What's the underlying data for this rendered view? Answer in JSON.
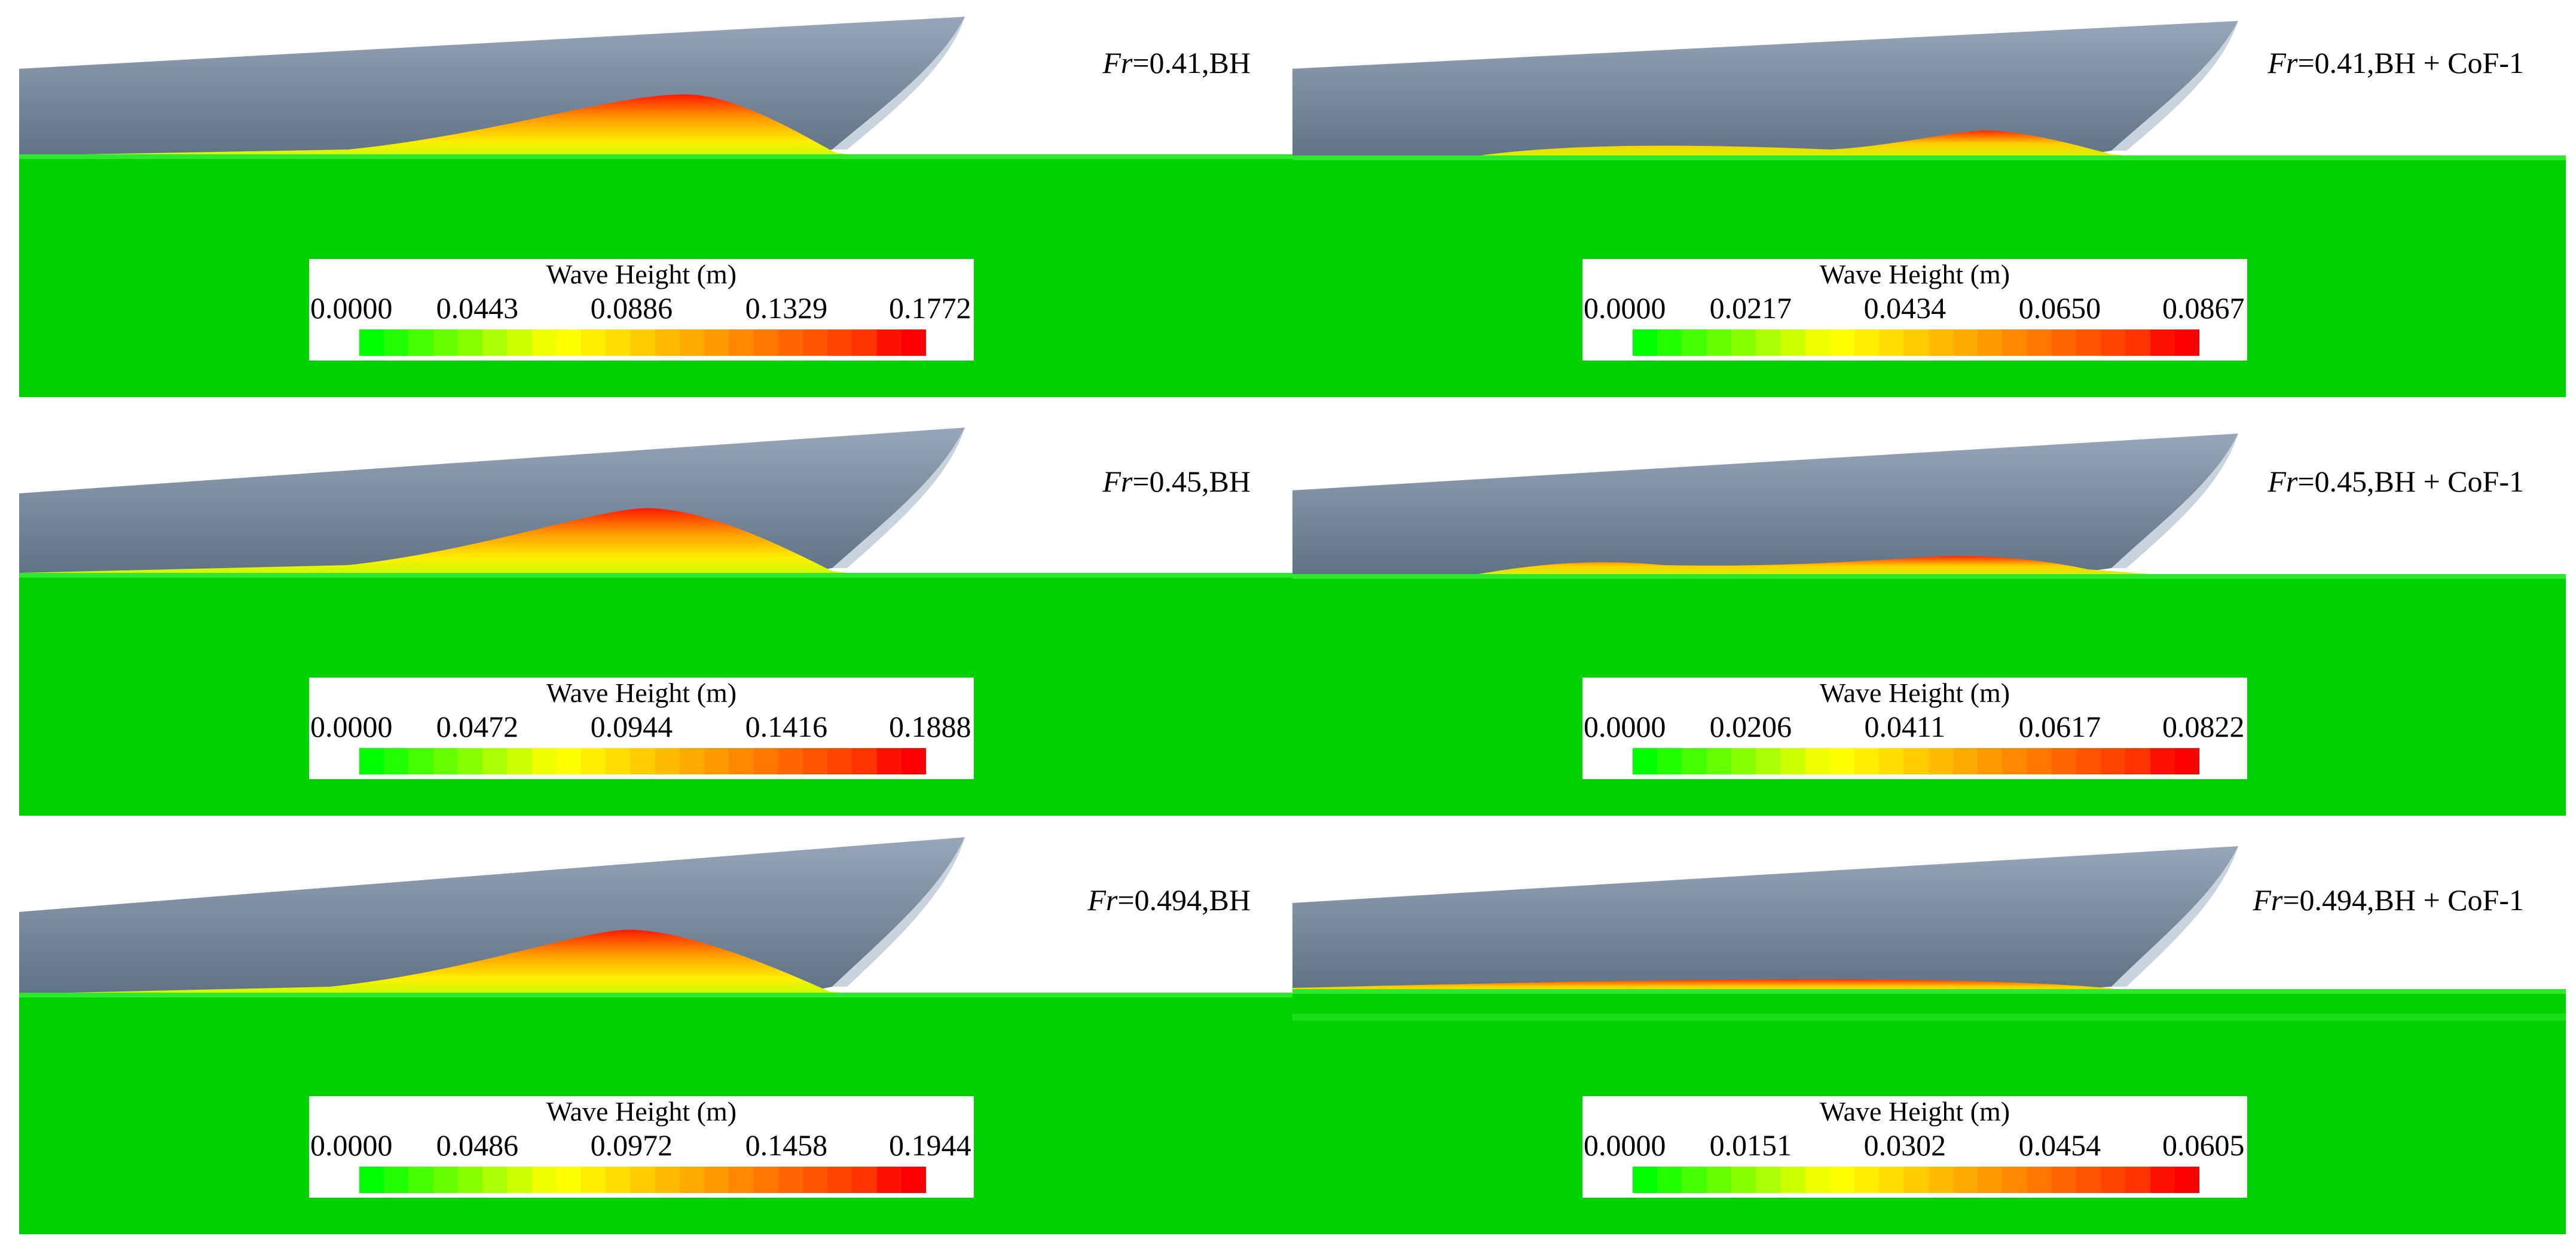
{
  "legend_title": "Wave Height (m)",
  "colors": {
    "water": "#00d100",
    "hull": "#6c7e91",
    "hull_light": "#aebacb",
    "wave_low": "#ffff00",
    "wave_high": "#ff0000",
    "scale": [
      "#00ff00",
      "#22ff00",
      "#44ff00",
      "#66ff00",
      "#88ff00",
      "#aaff00",
      "#ccff00",
      "#eeff00",
      "#ffff00",
      "#ffee00",
      "#ffdd00",
      "#ffcc00",
      "#ffbb00",
      "#ffaa00",
      "#ff9900",
      "#ff8800",
      "#ff7700",
      "#ff6600",
      "#ff5500",
      "#ff4400",
      "#ff3300",
      "#ff1100",
      "#ff0000"
    ]
  },
  "panels": [
    {
      "id": "fr041-bh",
      "fr_symbol": "Fr",
      "label_rest": "=0.41,BH",
      "ticks": [
        "0.0000",
        "0.0443",
        "0.0886",
        "0.1329",
        "0.1772"
      ],
      "wave_max": 0.1772
    },
    {
      "id": "fr041-cof",
      "fr_symbol": "Fr",
      "label_rest": "=0.41,BH + CoF-1",
      "ticks": [
        "0.0000",
        "0.0217",
        "0.0434",
        "0.0650",
        "0.0867"
      ],
      "wave_max": 0.0867
    },
    {
      "id": "fr045-bh",
      "fr_symbol": "Fr",
      "label_rest": "=0.45,BH",
      "ticks": [
        "0.0000",
        "0.0472",
        "0.0944",
        "0.1416",
        "0.1888"
      ],
      "wave_max": 0.1888
    },
    {
      "id": "fr045-cof",
      "fr_symbol": "Fr",
      "label_rest": "=0.45,BH + CoF-1",
      "ticks": [
        "0.0000",
        "0.0206",
        "0.0411",
        "0.0617",
        "0.0822"
      ],
      "wave_max": 0.0822
    },
    {
      "id": "fr0494-bh",
      "fr_symbol": "Fr",
      "label_rest": "=0.494,BH",
      "ticks": [
        "0.0000",
        "0.0486",
        "0.0972",
        "0.1458",
        "0.1944"
      ],
      "wave_max": 0.1944
    },
    {
      "id": "fr0494-cof",
      "fr_symbol": "Fr",
      "label_rest": "=0.494,BH + CoF-1",
      "ticks": [
        "0.0000",
        "0.0151",
        "0.0302",
        "0.0454",
        "0.0605"
      ],
      "wave_max": 0.0605
    }
  ]
}
